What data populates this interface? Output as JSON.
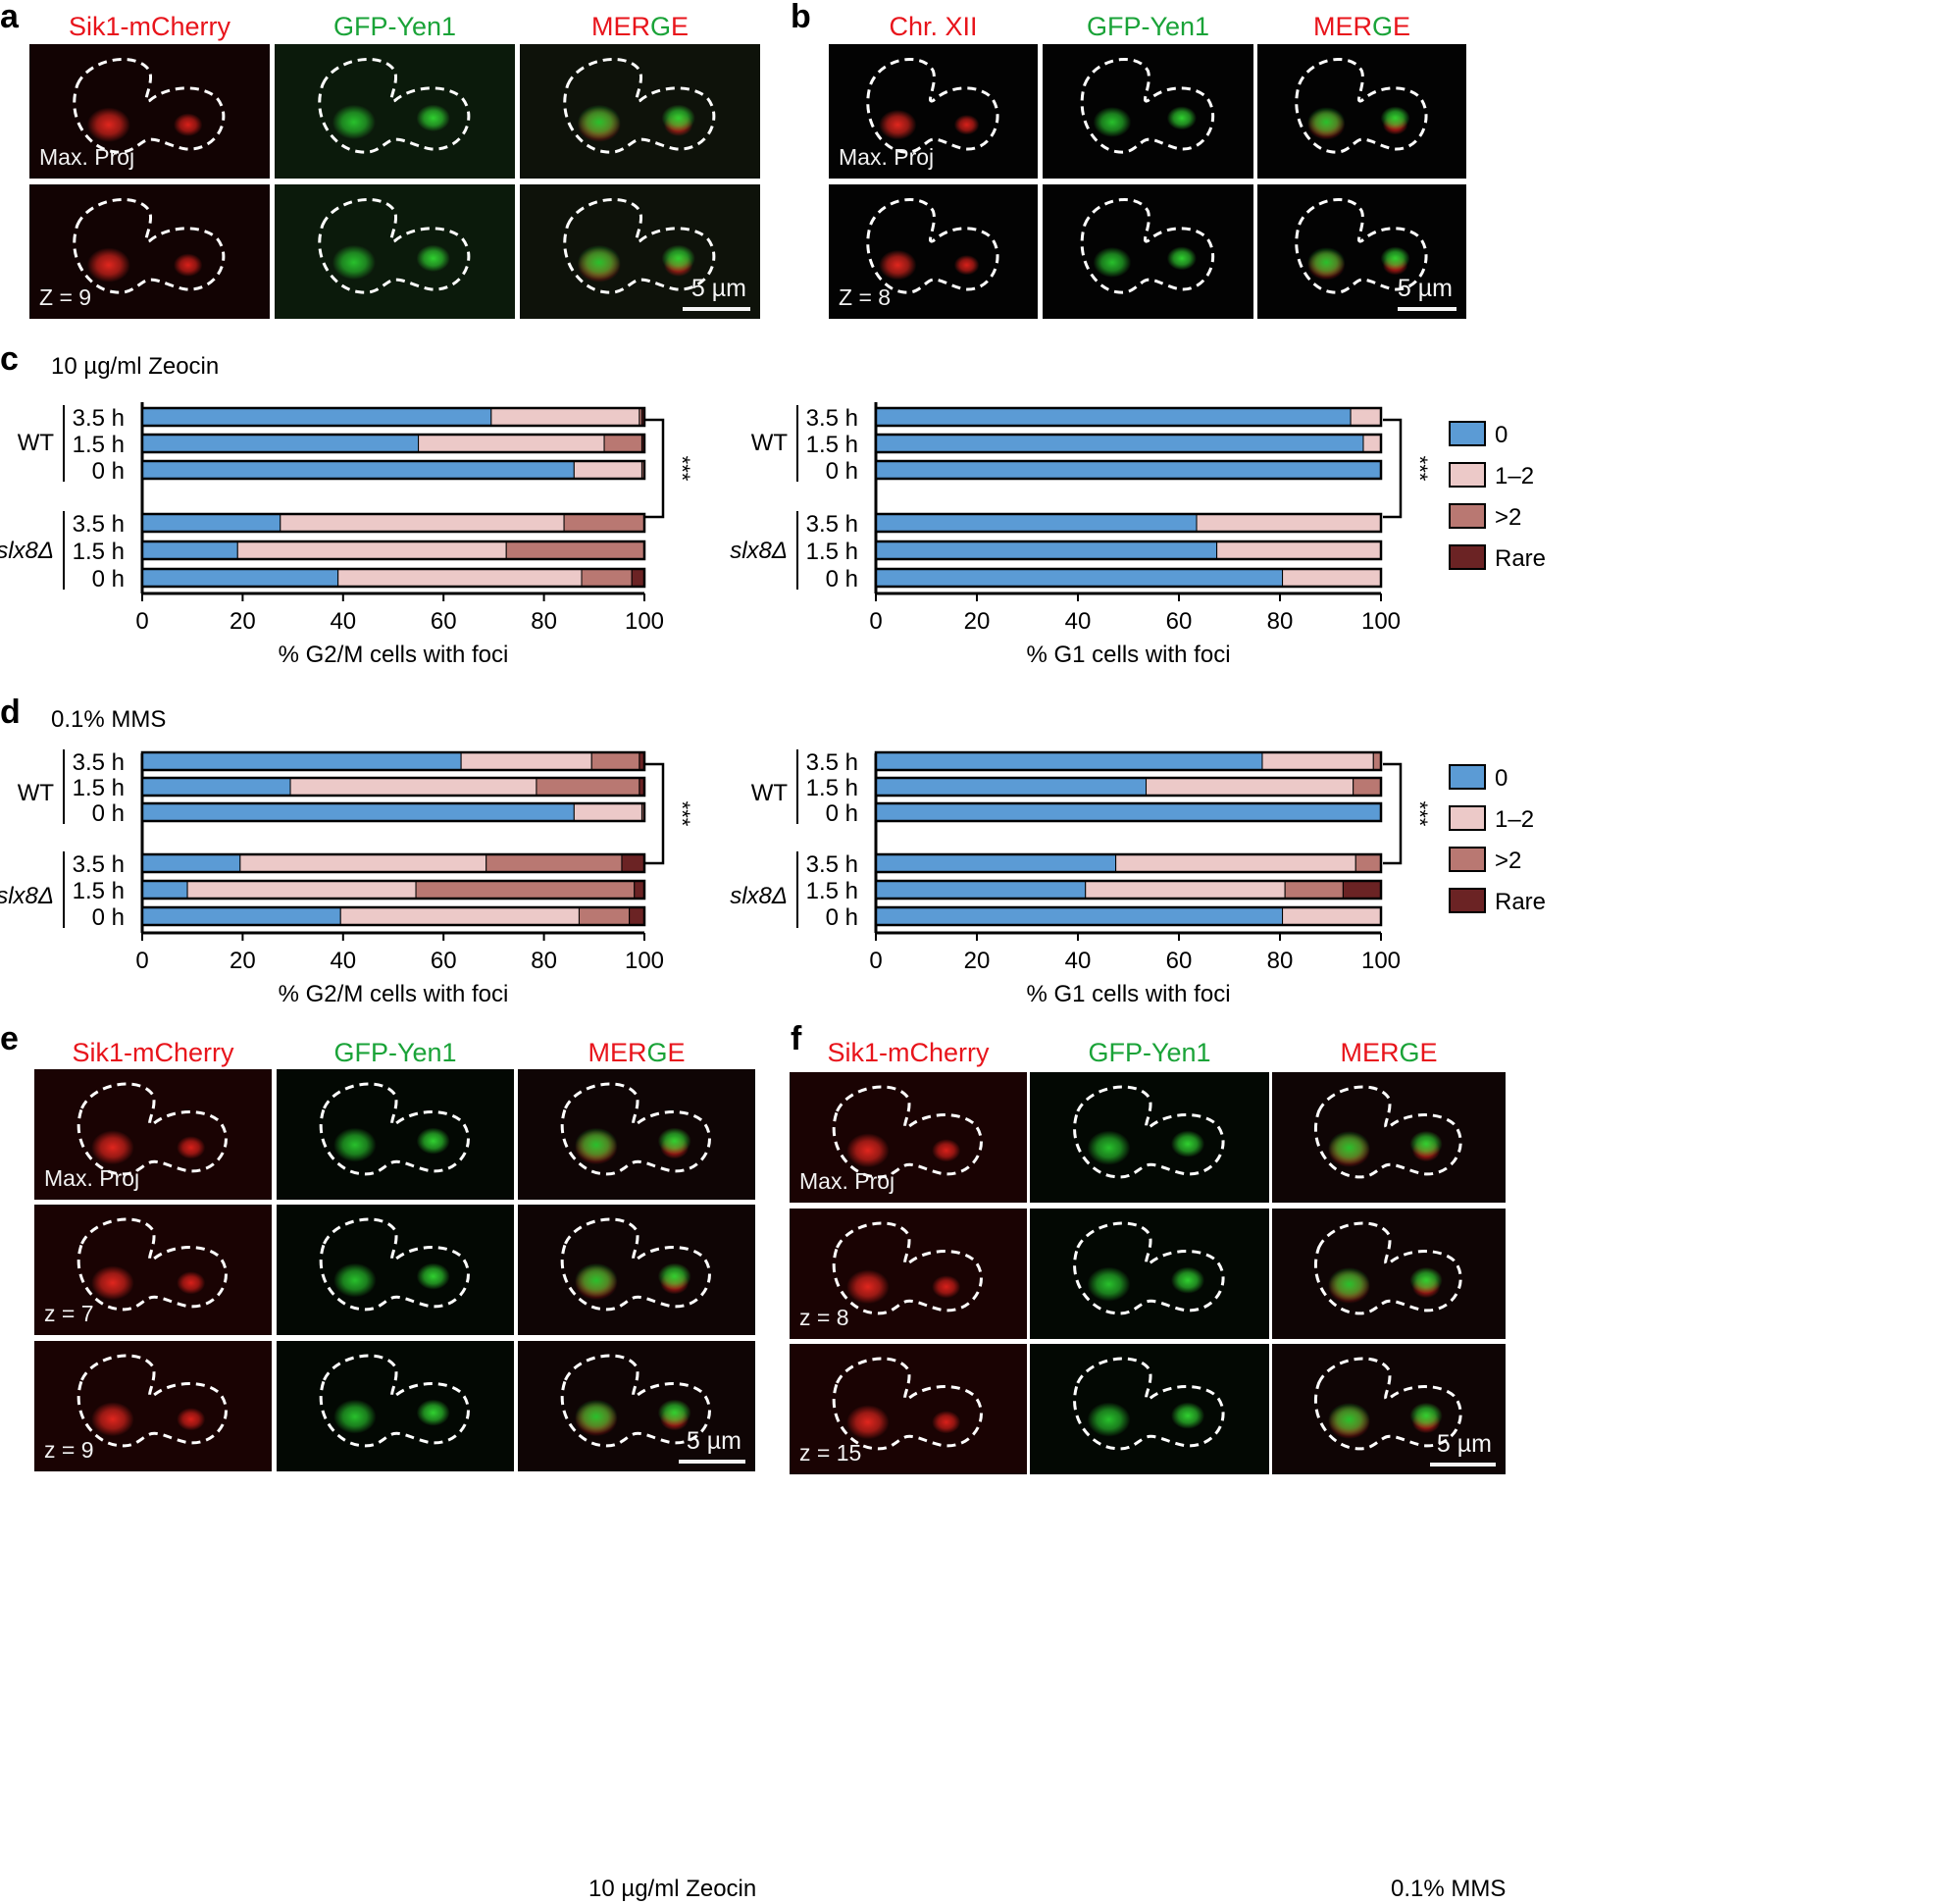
{
  "panels": {
    "a": {
      "letter": "a",
      "channels": [
        "Sik1-mCherry",
        "GFP-Yen1",
        "MERGE"
      ],
      "row_labels": [
        "Max. Proj",
        "Z = 9"
      ],
      "scale_bar": "5 µm"
    },
    "b": {
      "letter": "b",
      "channels": [
        "Chr. XII",
        "GFP-Yen1",
        "MERGE"
      ],
      "row_labels": [
        "Max. Proj",
        "Z = 8"
      ],
      "scale_bar": "5 µm"
    },
    "c": {
      "letter": "c",
      "condition": "10 µg/ml Zeocin"
    },
    "d": {
      "letter": "d",
      "condition": "0.1% MMS"
    },
    "e": {
      "letter": "e",
      "channels": [
        "Sik1-mCherry",
        "GFP-Yen1",
        "MERGE"
      ],
      "row_labels": [
        "Max. Proj",
        "z = 7",
        "z = 9"
      ],
      "scale_bar": "5 µm",
      "condition": "10 µg/ml Zeocin"
    },
    "f": {
      "letter": "f",
      "channels": [
        "Sik1-mCherry",
        "GFP-Yen1",
        "MERGE"
      ],
      "row_labels": [
        "Max. Proj",
        "z = 8",
        "z = 15"
      ],
      "scale_bar": "5 µm",
      "condition": "0.1% MMS"
    }
  },
  "merge_letters": [
    "M",
    "E",
    "R",
    "G",
    "E"
  ],
  "colors": {
    "zero": "#5b9bd5",
    "one_two": "#ecc9c8",
    "gt_two": "#b97872",
    "rare": "#6b2324",
    "mcherry": "#e8141b",
    "gfp": "#1aa338"
  },
  "chart_data": [
    {
      "type": "bar",
      "stacked": true,
      "orientation": "horizontal",
      "panel": "c",
      "xlabel": "% G2/M cells with foci",
      "xlim": [
        0,
        100
      ],
      "xticks": [
        0,
        20,
        40,
        60,
        80,
        100
      ],
      "groups": [
        {
          "name": "WT",
          "rows": [
            "3.5 h",
            "1.5 h",
            "0 h"
          ]
        },
        {
          "name": "slx8Δ",
          "rows": [
            "3.5 h",
            "1.5 h",
            "0 h"
          ]
        }
      ],
      "series": [
        {
          "name": "0",
          "values": [
            69.5,
            55,
            86,
            27.5,
            19,
            39
          ]
        },
        {
          "name": "1–2",
          "values": [
            29.5,
            37,
            13.5,
            56.5,
            53.5,
            48.5
          ]
        },
        {
          "name": ">2",
          "values": [
            0.5,
            7.5,
            0.5,
            16,
            27.5,
            10
          ]
        },
        {
          "name": "Rare",
          "values": [
            0.5,
            0.5,
            0,
            0,
            0,
            2.5
          ]
        }
      ],
      "significance": "***",
      "legend": false
    },
    {
      "type": "bar",
      "stacked": true,
      "orientation": "horizontal",
      "panel": "c",
      "xlabel": "% G1 cells with foci",
      "xlim": [
        0,
        100
      ],
      "xticks": [
        0,
        20,
        40,
        60,
        80,
        100
      ],
      "groups": [
        {
          "name": "WT",
          "rows": [
            "3.5 h",
            "1.5 h",
            "0 h"
          ]
        },
        {
          "name": "slx8Δ",
          "rows": [
            "3.5 h",
            "1.5 h",
            "0 h"
          ]
        }
      ],
      "series": [
        {
          "name": "0",
          "values": [
            94,
            96.5,
            100,
            63.5,
            67.5,
            80.5
          ]
        },
        {
          "name": "1–2",
          "values": [
            6,
            3.5,
            0,
            36.5,
            32.5,
            19.5
          ]
        },
        {
          "name": ">2",
          "values": [
            0,
            0,
            0,
            0,
            0,
            0
          ]
        },
        {
          "name": "Rare",
          "values": [
            0,
            0,
            0,
            0,
            0,
            0
          ]
        }
      ],
      "significance": "***",
      "legend": true,
      "legend_position": "right"
    },
    {
      "type": "bar",
      "stacked": true,
      "orientation": "horizontal",
      "panel": "d",
      "xlabel": "% G2/M cells with foci",
      "xlim": [
        0,
        100
      ],
      "xticks": [
        0,
        20,
        40,
        60,
        80,
        100
      ],
      "groups": [
        {
          "name": "WT",
          "rows": [
            "3.5 h",
            "1.5 h",
            "0 h"
          ]
        },
        {
          "name": "slx8Δ",
          "rows": [
            "3.5 h",
            "1.5 h",
            "0 h"
          ]
        }
      ],
      "series": [
        {
          "name": "0",
          "values": [
            63.5,
            29.5,
            86,
            19.5,
            9,
            39.5
          ]
        },
        {
          "name": "1–2",
          "values": [
            26,
            49,
            13.5,
            49,
            45.5,
            47.5
          ]
        },
        {
          "name": ">2",
          "values": [
            9.5,
            20.5,
            0.5,
            27,
            43.5,
            10
          ]
        },
        {
          "name": "Rare",
          "values": [
            1,
            1,
            0,
            4.5,
            2,
            3
          ]
        }
      ],
      "significance": "***",
      "legend": false
    },
    {
      "type": "bar",
      "stacked": true,
      "orientation": "horizontal",
      "panel": "d",
      "xlabel": "% G1 cells with foci",
      "xlim": [
        0,
        100
      ],
      "xticks": [
        0,
        20,
        40,
        60,
        80,
        100
      ],
      "groups": [
        {
          "name": "WT",
          "rows": [
            "3.5 h",
            "1.5 h",
            "0 h"
          ]
        },
        {
          "name": "slx8Δ",
          "rows": [
            "3.5 h",
            "1.5 h",
            "0 h"
          ]
        }
      ],
      "series": [
        {
          "name": "0",
          "values": [
            76.5,
            53.5,
            100,
            47.5,
            41.5,
            80.5
          ]
        },
        {
          "name": "1–2",
          "values": [
            22,
            41,
            0,
            47.5,
            39.5,
            19.5
          ]
        },
        {
          "name": ">2",
          "values": [
            1.5,
            5.5,
            0,
            5,
            11.5,
            0
          ]
        },
        {
          "name": "Rare",
          "values": [
            0,
            0,
            0,
            0,
            7.5,
            0
          ]
        }
      ],
      "significance": "***",
      "legend": true,
      "legend_position": "right"
    }
  ]
}
